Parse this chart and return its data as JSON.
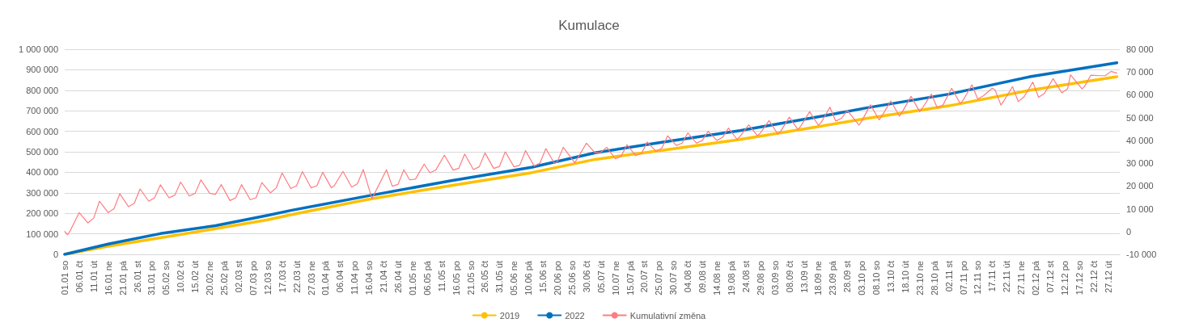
{
  "chart_data": {
    "type": "line",
    "title": "Kumulace",
    "categories": [
      "01.01 so",
      null,
      null,
      null,
      null,
      "06.01 čt",
      null,
      null,
      null,
      null,
      "11.01 út",
      null,
      null,
      null,
      null,
      "16.01 ne",
      null,
      null,
      null,
      null,
      "21.01 pá",
      null,
      null,
      null,
      null,
      "26.01 st",
      null,
      null,
      null,
      null,
      "31.01 po",
      null,
      null,
      null,
      null,
      "05.02 so",
      null,
      null,
      null,
      null,
      "10.02 čt",
      null,
      null,
      null,
      null,
      "15.02 út",
      null,
      null,
      null,
      null,
      "20.02 ne",
      null,
      null,
      null,
      null,
      "25.02 pá",
      null,
      null,
      null,
      null,
      "02.03 st",
      null,
      null,
      null,
      null,
      "07.03 po",
      null,
      null,
      null,
      null,
      "12.03 so",
      null,
      null,
      null,
      null,
      "17.03 čt",
      null,
      null,
      null,
      null,
      "22.03 út",
      null,
      null,
      null,
      null,
      "27.03 ne",
      null,
      null,
      null,
      null,
      "01.04 pá",
      null,
      null,
      null,
      null,
      "06.04 st",
      null,
      null,
      null,
      null,
      "11.04 po",
      null,
      null,
      null,
      null,
      "16.04 so",
      null,
      null,
      null,
      null,
      "21.04 čt",
      null,
      null,
      null,
      null,
      "26.04 út",
      null,
      null,
      null,
      null,
      "01.05 ne",
      null,
      null,
      null,
      null,
      "06.05 pá",
      null,
      null,
      null,
      null,
      "11.05 st",
      null,
      null,
      null,
      null,
      "16.05 po",
      null,
      null,
      null,
      null,
      "21.05 so",
      null,
      null,
      null,
      null,
      "26.05 čt",
      null,
      null,
      null,
      null,
      "31.05 út",
      null,
      null,
      null,
      null,
      "05.06 ne",
      null,
      null,
      null,
      null,
      "10.06 pá",
      null,
      null,
      null,
      null,
      "15.06 st",
      null,
      null,
      null,
      null,
      "20.06 po",
      null,
      null,
      null,
      null,
      "25.06 so",
      null,
      null,
      null,
      null,
      "30.06 čt",
      null,
      null,
      null,
      null,
      "05.07 út",
      null,
      null,
      null,
      null,
      "10.07 ne",
      null,
      null,
      null,
      null,
      "15.07 pá",
      null,
      null,
      null,
      null,
      "20.07 st",
      null,
      null,
      null,
      null,
      "25.07 po",
      null,
      null,
      null,
      null,
      "30.07 so",
      null,
      null,
      null,
      null,
      "04.08 čt",
      null,
      null,
      null,
      null,
      "09.08 út",
      null,
      null,
      null,
      null,
      "14.08 ne",
      null,
      null,
      null,
      null,
      "19.08 pá",
      null,
      null,
      null,
      null,
      "24.08 st",
      null,
      null,
      null,
      null,
      "29.08 po",
      null,
      null,
      null,
      null,
      "03.09 so",
      null,
      null,
      null,
      null,
      "08.09 čt",
      null,
      null,
      null,
      null,
      "13.09 út",
      null,
      null,
      null,
      null,
      "18.09 ne",
      null,
      null,
      null,
      null,
      "23.09 pá",
      null,
      null,
      null,
      null,
      "28.09 st",
      null,
      null,
      null,
      null,
      "03.10 po",
      null,
      null,
      null,
      null,
      "08.10 so",
      null,
      null,
      null,
      null,
      "13.10 čt",
      null,
      null,
      null,
      null,
      "18.10 út",
      null,
      null,
      null,
      null,
      "23.10 ne",
      null,
      null,
      null,
      null,
      "28.10 pá",
      null,
      null,
      null,
      null,
      "02.11 st",
      null,
      null,
      null,
      null,
      "07.11 po",
      null,
      null,
      null,
      null,
      "12.11 so",
      null,
      null,
      null,
      null,
      "17.11 čt",
      null,
      null,
      null,
      null,
      "22.11 út",
      null,
      null,
      null,
      null,
      "27.11 ne",
      null,
      null,
      null,
      null,
      "02.12 pá",
      null,
      null,
      null,
      null,
      "07.12 st",
      null,
      null,
      null,
      null,
      "12.12 po",
      null,
      null,
      null,
      null,
      "17.12 so",
      null,
      null,
      null,
      null,
      "22.12 čt",
      null,
      null,
      null,
      null,
      "27.12 út",
      null,
      null,
      null,
      null
    ],
    "series": [
      {
        "name": "2019",
        "color": "#ffc000",
        "values": [
          0,
          null,
          null,
          null,
          null,
          null,
          null,
          null,
          null,
          null,
          null,
          null,
          null,
          null,
          null,
          39000,
          null,
          null,
          null,
          null,
          null,
          null,
          null,
          null,
          null,
          null,
          null,
          null,
          null,
          null,
          null,
          null,
          null,
          81000,
          null,
          null,
          null,
          null,
          null,
          null,
          null,
          null,
          null,
          null,
          null,
          null,
          null,
          null,
          null,
          null,
          null,
          null,
          125000,
          null,
          null,
          null,
          null,
          null,
          null,
          null,
          null,
          null,
          null,
          null,
          null,
          null,
          null,
          null,
          null,
          null,
          168000,
          null,
          null,
          null,
          null,
          null,
          null,
          null,
          193000,
          null,
          null,
          null,
          null,
          null,
          null,
          null,
          null,
          null,
          null,
          null,
          null,
          null,
          null,
          null,
          null,
          null,
          null,
          null,
          null,
          null,
          null,
          null,
          null,
          null,
          null,
          269000,
          null,
          null,
          null,
          null,
          null,
          null,
          null,
          null,
          null,
          null,
          null,
          null,
          null,
          null,
          null,
          null,
          null,
          null,
          null,
          null,
          null,
          null,
          null,
          null,
          null,
          null,
          null,
          335000,
          null,
          null,
          null,
          null,
          null,
          null,
          null,
          null,
          null,
          null,
          null,
          null,
          null,
          null,
          null,
          null,
          null,
          null,
          null,
          null,
          null,
          null,
          null,
          null,
          null,
          null,
          null,
          398000,
          null,
          null,
          null,
          null,
          null,
          null,
          null,
          null,
          null,
          null,
          null,
          null,
          null,
          null,
          null,
          null,
          null,
          null,
          null,
          null,
          null,
          463000,
          null,
          null,
          null,
          null,
          null,
          null,
          null,
          null,
          null,
          null,
          null,
          null,
          null,
          null,
          null,
          null,
          null,
          null,
          null,
          null,
          null,
          505000,
          null,
          null,
          null,
          null,
          null,
          null,
          null,
          null,
          null,
          null,
          null,
          null,
          null,
          null,
          null,
          null,
          null,
          null,
          null,
          null,
          null,
          null,
          null,
          null,
          null,
          null,
          null,
          560000,
          null,
          null,
          null,
          null,
          null,
          null,
          null,
          null,
          null,
          null,
          null,
          null,
          null,
          null,
          null,
          null,
          null,
          null,
          null,
          null,
          null,
          null,
          null,
          null,
          null,
          null,
          null,
          625000,
          null,
          null,
          null,
          null,
          null,
          null,
          null,
          null,
          null,
          null,
          null,
          null,
          null,
          null,
          null,
          663000,
          null,
          null,
          null,
          null,
          null,
          null,
          null,
          null,
          null,
          null,
          null,
          null,
          null,
          null,
          null,
          null,
          null,
          null,
          null,
          null,
          null,
          null,
          null,
          null,
          null,
          null,
          null,
          724000,
          null,
          null,
          null,
          null,
          null,
          null,
          null,
          null,
          null,
          null,
          null,
          null,
          null,
          null,
          null,
          null,
          null,
          null,
          null,
          null,
          null,
          null,
          null,
          null,
          null,
          null,
          null,
          800000,
          null,
          null,
          null,
          null,
          null,
          null,
          null,
          null,
          null,
          null,
          null,
          null,
          null,
          null,
          null,
          null,
          null,
          null,
          null,
          null,
          null,
          null,
          null,
          null,
          null,
          null,
          null,
          null,
          null,
          866000,
          null
        ]
      },
      {
        "name": "2022",
        "color": "#0070c0",
        "values": [
          0,
          null,
          null,
          null,
          null,
          null,
          null,
          null,
          null,
          null,
          null,
          null,
          null,
          null,
          null,
          50000,
          null,
          null,
          null,
          null,
          null,
          null,
          null,
          null,
          null,
          null,
          null,
          null,
          null,
          null,
          null,
          null,
          null,
          101000,
          null,
          null,
          null,
          null,
          null,
          null,
          null,
          null,
          null,
          null,
          null,
          null,
          null,
          null,
          null,
          null,
          null,
          null,
          140000,
          null,
          null,
          null,
          null,
          null,
          null,
          null,
          null,
          null,
          null,
          null,
          null,
          null,
          null,
          null,
          null,
          null,
          190000,
          null,
          null,
          null,
          null,
          null,
          null,
          null,
          214000,
          null,
          null,
          null,
          null,
          null,
          null,
          null,
          null,
          null,
          null,
          null,
          null,
          null,
          null,
          null,
          null,
          null,
          null,
          null,
          null,
          null,
          null,
          null,
          null,
          null,
          null,
          286000,
          null,
          null,
          null,
          null,
          null,
          null,
          null,
          null,
          null,
          null,
          null,
          null,
          null,
          null,
          null,
          null,
          null,
          null,
          null,
          null,
          null,
          null,
          null,
          null,
          null,
          null,
          null,
          358000,
          null,
          null,
          null,
          null,
          null,
          null,
          null,
          null,
          null,
          null,
          null,
          null,
          null,
          null,
          null,
          null,
          null,
          null,
          null,
          null,
          null,
          null,
          null,
          null,
          null,
          null,
          null,
          424000,
          null,
          null,
          null,
          null,
          null,
          null,
          null,
          null,
          null,
          null,
          null,
          null,
          null,
          null,
          null,
          null,
          null,
          null,
          null,
          null,
          null,
          495000,
          null,
          null,
          null,
          null,
          null,
          null,
          null,
          null,
          null,
          null,
          null,
          null,
          null,
          null,
          null,
          null,
          null,
          null,
          null,
          null,
          null,
          544000,
          null,
          null,
          null,
          null,
          null,
          null,
          null,
          null,
          null,
          null,
          null,
          null,
          null,
          null,
          null,
          null,
          null,
          null,
          null,
          null,
          null,
          null,
          null,
          null,
          null,
          null,
          null,
          603000,
          null,
          null,
          null,
          null,
          null,
          null,
          null,
          null,
          null,
          null,
          null,
          null,
          null,
          null,
          null,
          null,
          null,
          null,
          null,
          null,
          null,
          null,
          null,
          null,
          null,
          null,
          null,
          673000,
          null,
          null,
          null,
          null,
          null,
          null,
          null,
          null,
          null,
          null,
          null,
          null,
          null,
          null,
          null,
          715000,
          null,
          null,
          null,
          null,
          null,
          null,
          null,
          null,
          null,
          null,
          null,
          null,
          null,
          null,
          null,
          null,
          null,
          null,
          null,
          null,
          null,
          null,
          null,
          null,
          null,
          null,
          null,
          781000,
          null,
          null,
          null,
          null,
          null,
          null,
          null,
          null,
          null,
          null,
          null,
          null,
          null,
          null,
          null,
          null,
          null,
          null,
          null,
          null,
          null,
          null,
          null,
          null,
          null,
          null,
          null,
          866000,
          null,
          null,
          null,
          null,
          null,
          null,
          null,
          null,
          null,
          null,
          null,
          null,
          null,
          null,
          null,
          null,
          null,
          null,
          null,
          null,
          null,
          null,
          null,
          null,
          null,
          null,
          null,
          null,
          null,
          934000,
          null
        ]
      },
      {
        "name": "Kumulativní změna",
        "color": "#ff7c80",
        "axis": "y2",
        "values": [
          0,
          -1400,
          600,
          null,
          null,
          8300,
          null,
          null,
          3800,
          null,
          5900,
          null,
          13300,
          null,
          null,
          8300,
          null,
          10000,
          null,
          16600,
          null,
          null,
          10900,
          null,
          12400,
          null,
          18700,
          null,
          null,
          13300,
          null,
          14800,
          null,
          20500,
          null,
          null,
          14800,
          null,
          16000,
          null,
          21700,
          null,
          null,
          15600,
          null,
          16800,
          null,
          22700,
          null,
          null,
          16800,
          null,
          16300,
          null,
          20600,
          null,
          null,
          13600,
          null,
          14800,
          null,
          20600,
          null,
          null,
          14000,
          null,
          14800,
          null,
          21500,
          null,
          null,
          17000,
          null,
          19200,
          null,
          25700,
          null,
          null,
          18900,
          null,
          20100,
          null,
          26300,
          null,
          null,
          19200,
          null,
          20100,
          null,
          26000,
          null,
          null,
          19200,
          20100,
          null,
          null,
          26400,
          null,
          null,
          19500,
          null,
          21000,
          null,
          27200,
          null,
          null,
          14400,
          null,
          null,
          null,
          null,
          27100,
          null,
          19900,
          null,
          20700,
          null,
          27100,
          null,
          22700,
          null,
          23000,
          null,
          null,
          29600,
          null,
          25800,
          null,
          27000,
          null,
          null,
          33500,
          null,
          null,
          27000,
          null,
          27800,
          null,
          34000,
          null,
          null,
          27200,
          null,
          28400,
          null,
          34500,
          null,
          null,
          27700,
          null,
          28600,
          null,
          35000,
          null,
          null,
          28400,
          null,
          29100,
          null,
          35500,
          null,
          null,
          28700,
          null,
          30100,
          null,
          36400,
          null,
          null,
          29800,
          30800,
          null,
          37000,
          null,
          null,
          null,
          30200,
          32300,
          null,
          null,
          38800,
          null,
          null,
          34500,
          null,
          34800,
          null,
          37000,
          null,
          null,
          31900,
          null,
          33100,
          null,
          38100,
          null,
          null,
          33300,
          null,
          34300,
          null,
          39300,
          null,
          null,
          35200,
          null,
          36600,
          null,
          42000,
          null,
          null,
          37800,
          null,
          38800,
          null,
          43300,
          null,
          null,
          38800,
          null,
          40000,
          null,
          44000,
          null,
          null,
          40000,
          null,
          41400,
          null,
          45400,
          null,
          null,
          40400,
          41800,
          null,
          null,
          46800,
          null,
          null,
          42000,
          43200,
          null,
          null,
          48700,
          null,
          null,
          42800,
          44000,
          null,
          null,
          50200,
          null,
          null,
          44700,
          46400,
          null,
          null,
          52600,
          null,
          null,
          46700,
          47900,
          null,
          null,
          54600,
          null,
          48500,
          null,
          49700,
          null,
          53200,
          null,
          null,
          null,
          46700,
          48500,
          null,
          null,
          55600,
          null,
          null,
          49000,
          50800,
          null,
          null,
          57300,
          null,
          null,
          50600,
          52600,
          null,
          null,
          59300,
          null,
          null,
          52600,
          54400,
          null,
          null,
          60300,
          null,
          54400,
          null,
          55500,
          null,
          null,
          62900,
          null,
          null,
          56100,
          57700,
          null,
          null,
          64400,
          null,
          58100,
          null,
          59600,
          null,
          null,
          62900,
          62100,
          null,
          55500,
          57300,
          null,
          null,
          63600,
          null,
          57000,
          null,
          59200,
          null,
          null,
          65600,
          null,
          58900,
          null,
          60600,
          null,
          null,
          67100,
          null,
          null,
          60900,
          null,
          62600,
          68800,
          null,
          null,
          null,
          62600,
          64000,
          null,
          68600,
          null,
          null,
          68400,
          null,
          68400,
          null,
          70300,
          null,
          69500,
          null
        ]
      }
    ],
    "ylim": [
      0,
      1000000
    ],
    "yticks": [
      0,
      {
        "value": 100000,
        "label": "100 000"
      },
      {
        "value": 200000,
        "label": "200 000"
      },
      {
        "value": 300000,
        "label": "300 000"
      },
      {
        "value": 400000,
        "label": "400 000"
      },
      {
        "value": 500000,
        "label": "500 000"
      },
      {
        "value": 600000,
        "label": "600 000"
      },
      {
        "value": 700000,
        "label": "700 000"
      },
      {
        "value": 800000,
        "label": "800 000"
      },
      {
        "value": 900000,
        "label": "900 000"
      },
      {
        "value": 1000000,
        "label": "1 000 000"
      }
    ],
    "y2lim": [
      -10000,
      80000
    ],
    "y2ticks": [
      {
        "value": -10000,
        "label": "-10 000"
      },
      0,
      {
        "value": 10000,
        "label": "10 000"
      },
      {
        "value": 20000,
        "label": "20 000"
      },
      {
        "value": 30000,
        "label": "30 000"
      },
      {
        "value": 40000,
        "label": "40 000"
      },
      {
        "value": 50000,
        "label": "50 000"
      },
      {
        "value": 60000,
        "label": "60 000"
      },
      {
        "value": 70000,
        "label": "70 000"
      },
      {
        "value": 80000,
        "label": "80 000"
      }
    ],
    "grid": "y",
    "legend": "bottom",
    "marker": "none",
    "line_style": "solid"
  }
}
